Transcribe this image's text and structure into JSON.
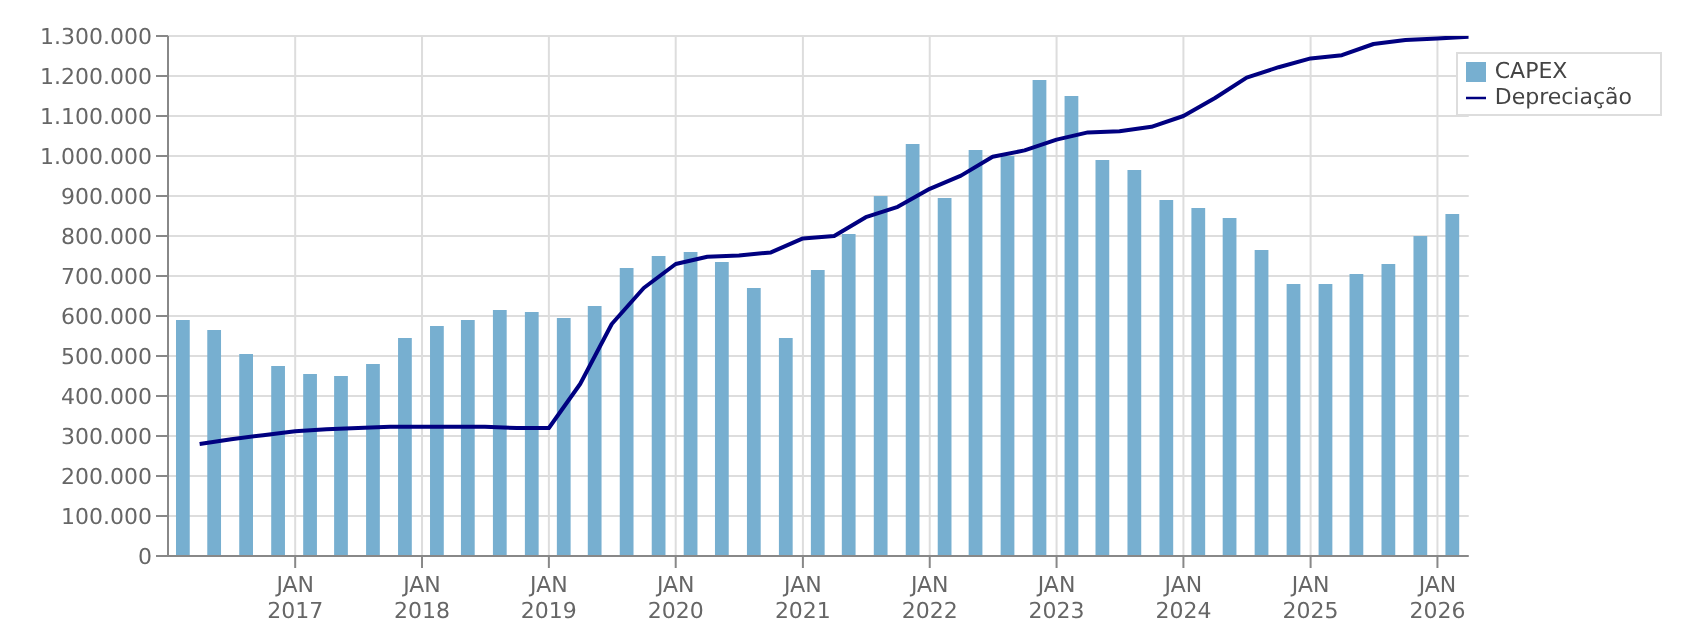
{
  "chart_data": {
    "type": "bar",
    "x": [
      "2016-02-15",
      "2016-05-15",
      "2016-08-15",
      "2016-11-15",
      "2017-02-15",
      "2017-05-15",
      "2017-08-15",
      "2017-11-15",
      "2018-02-15",
      "2018-05-15",
      "2018-08-15",
      "2018-11-15",
      "2019-02-15",
      "2019-05-15",
      "2019-08-15",
      "2019-11-15",
      "2020-02-15",
      "2020-05-15",
      "2020-08-15",
      "2020-11-15",
      "2021-02-15",
      "2021-05-15",
      "2021-08-15",
      "2021-11-15",
      "2022-02-15",
      "2022-05-15",
      "2022-08-15",
      "2022-11-15",
      "2023-02-15",
      "2023-05-15",
      "2023-08-15",
      "2023-11-15",
      "2024-02-15",
      "2024-05-15",
      "2024-08-15",
      "2024-11-15",
      "2025-02-15",
      "2025-05-15",
      "2025-08-15",
      "2025-11-15",
      "2026-02-15"
    ],
    "series": [
      {
        "name": "CAPEX",
        "color": "#77afd0",
        "values": [
          590000,
          565000,
          505000,
          475000,
          455000,
          450000,
          480000,
          545000,
          575000,
          590000,
          615000,
          610000,
          595000,
          625000,
          720000,
          750000,
          760000,
          735000,
          670000,
          545000,
          715000,
          805000,
          900000,
          1030000,
          895000,
          1015000,
          1000000,
          1190000,
          1150000,
          990000,
          965000,
          890000,
          870000,
          845000,
          765000,
          680000,
          680000,
          705000,
          730000,
          800000,
          855000
        ]
      },
      {
        "name": "Depreciação",
        "type": "line",
        "color": "#000080",
        "x": [
          "2016-04",
          "2016-07",
          "2016-10",
          "2017-01",
          "2017-04",
          "2017-07",
          "2017-10",
          "2018-01",
          "2018-04",
          "2018-07",
          "2018-10",
          "2019-01",
          "2019-04",
          "2019-07",
          "2019-10",
          "2020-01",
          "2020-04",
          "2020-07",
          "2020-10",
          "2021-01",
          "2021-04",
          "2021-07",
          "2021-10",
          "2022-01",
          "2022-04",
          "2022-07",
          "2022-10",
          "2023-01",
          "2023-04",
          "2023-07",
          "2023-10",
          "2024-01",
          "2024-04",
          "2024-07",
          "2024-10",
          "2025-01",
          "2025-04",
          "2025-07",
          "2025-10",
          "2026-01",
          "2026-04"
        ],
        "values": [
          280000,
          292000,
          302000,
          312000,
          317000,
          320000,
          323000,
          323000,
          323000,
          323000,
          320000,
          320000,
          430000,
          580000,
          670000,
          730000,
          748000,
          751000,
          759000,
          794000,
          800000,
          847000,
          873000,
          918000,
          951000,
          998000,
          1014000,
          1041000,
          1059000,
          1062000,
          1073000,
          1100000,
          1145000,
          1196000,
          1222000,
          1244000,
          1252000,
          1280000,
          1290000,
          1294000,
          1298000
        ]
      }
    ],
    "xlim": [
      "2016-01",
      "2026-04"
    ],
    "xticks": [
      {
        "value": "2017-01",
        "label": "JAN 2017"
      },
      {
        "value": "2018-01",
        "label": "JAN 2018"
      },
      {
        "value": "2019-01",
        "label": "JAN 2019"
      },
      {
        "value": "2020-01",
        "label": "JAN 2020"
      },
      {
        "value": "2021-01",
        "label": "JAN 2021"
      },
      {
        "value": "2022-01",
        "label": "JAN 2022"
      },
      {
        "value": "2023-01",
        "label": "JAN 2023"
      },
      {
        "value": "2024-01",
        "label": "JAN 2024"
      },
      {
        "value": "2025-01",
        "label": "JAN 2025"
      },
      {
        "value": "2026-01",
        "label": "JAN 2026"
      }
    ],
    "ylim": [
      0,
      1300000
    ],
    "yticks": [
      0,
      {
        "value": 100000,
        "label": "100.000"
      },
      {
        "value": 200000,
        "label": "200.000"
      },
      {
        "value": 300000,
        "label": "300.000"
      },
      {
        "value": 400000,
        "label": "400.000"
      },
      {
        "value": 500000,
        "label": "500.000"
      },
      {
        "value": 600000,
        "label": "600.000"
      },
      {
        "value": 700000,
        "label": "700.000"
      },
      {
        "value": 800000,
        "label": "800.000"
      },
      {
        "value": 900000,
        "label": "900.000"
      },
      {
        "value": 1000000,
        "label": "1.000.000"
      },
      {
        "value": 1100000,
        "label": "1.100.000"
      },
      {
        "value": 1200000,
        "label": "1.200.000"
      },
      {
        "value": 1300000,
        "label": "1.300.000"
      }
    ],
    "grid": true,
    "legend": "top right",
    "marker": "none"
  }
}
